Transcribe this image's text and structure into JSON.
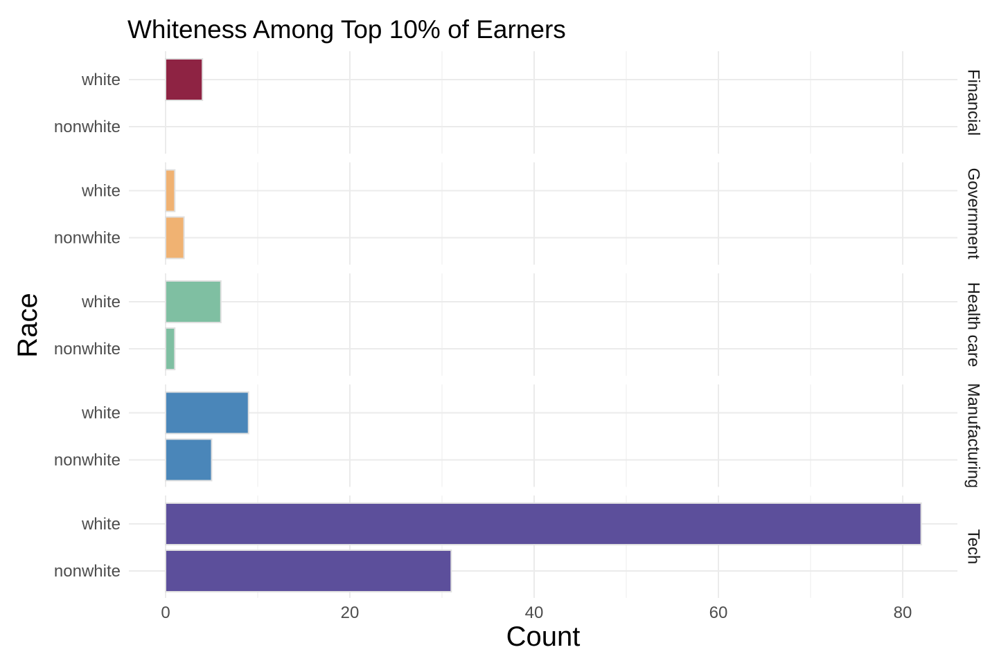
{
  "chart_data": {
    "type": "bar",
    "orientation": "horizontal",
    "title": "Whiteness Among Top 10% of Earners",
    "xlabel": "Count",
    "ylabel": "Race",
    "xlim": [
      0,
      86
    ],
    "x_ticks": [
      "0",
      "20",
      "40",
      "60",
      "80"
    ],
    "x_tick_values": [
      0,
      20,
      40,
      60,
      80
    ],
    "grid": true,
    "legend": "none",
    "categories": [
      "white",
      "nonwhite"
    ],
    "facets": [
      {
        "name": "Financial",
        "color": "#8e2343",
        "values": [
          4,
          0
        ]
      },
      {
        "name": "Government",
        "color": "#f0b272",
        "values": [
          1,
          2
        ]
      },
      {
        "name": "Health care",
        "color": "#7fbfa2",
        "values": [
          6,
          1
        ]
      },
      {
        "name": "Manufacturing",
        "color": "#4a86b9",
        "values": [
          9,
          5
        ]
      },
      {
        "name": "Tech",
        "color": "#5c4f9b",
        "values": [
          82,
          31
        ]
      }
    ]
  }
}
